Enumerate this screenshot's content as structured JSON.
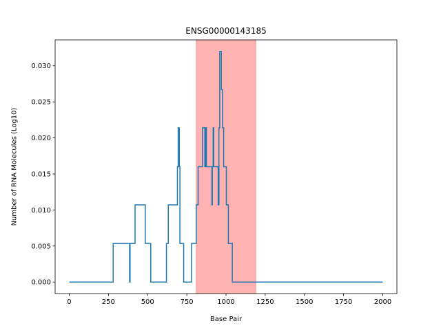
{
  "chart_data": {
    "type": "line",
    "title": "ENSG00000143185",
    "xlabel": "Base Pair",
    "ylabel": "Number of RNA Molecules (Log10)",
    "xlim": [
      -90,
      2090
    ],
    "ylim": [
      -0.0016,
      0.0336
    ],
    "xticks": [
      0,
      250,
      500,
      750,
      1000,
      1250,
      1500,
      1750,
      2000
    ],
    "yticks": [
      0.0,
      0.005,
      0.01,
      0.015,
      0.02,
      0.025,
      0.03
    ],
    "ytick_labels": [
      "0.000",
      "0.005",
      "0.010",
      "0.015",
      "0.020",
      "0.025",
      "0.030"
    ],
    "grid": false,
    "highlight_region": {
      "x0": 810,
      "x1": 1190,
      "color": "#ff0000",
      "alpha": 0.3
    },
    "series": [
      {
        "color": "#1f77b4",
        "steps": [
          [
            0,
            0
          ],
          [
            280,
            0.00535
          ],
          [
            385,
            0.0
          ],
          [
            388,
            0.00535
          ],
          [
            420,
            0.0107
          ],
          [
            485,
            0.00535
          ],
          [
            520,
            0.0
          ],
          [
            620,
            0.00535
          ],
          [
            632,
            0.0107
          ],
          [
            690,
            0.016
          ],
          [
            695,
            0.0214
          ],
          [
            702,
            0.016
          ],
          [
            706,
            0.00535
          ],
          [
            730,
            0.0
          ],
          [
            780,
            0.00535
          ],
          [
            810,
            0.0107
          ],
          [
            822,
            0.016
          ],
          [
            850,
            0.0214
          ],
          [
            865,
            0.016
          ],
          [
            870,
            0.0214
          ],
          [
            875,
            0.016
          ],
          [
            910,
            0.0107
          ],
          [
            913,
            0.016
          ],
          [
            918,
            0.0214
          ],
          [
            922,
            0.016
          ],
          [
            950,
            0.0107
          ],
          [
            955,
            0.0214
          ],
          [
            960,
            0.032
          ],
          [
            970,
            0.0267
          ],
          [
            978,
            0.0214
          ],
          [
            985,
            0.016
          ],
          [
            1002,
            0.0107
          ],
          [
            1015,
            0.00535
          ],
          [
            1040,
            0.0
          ],
          [
            2000,
            0.0
          ]
        ]
      }
    ]
  }
}
